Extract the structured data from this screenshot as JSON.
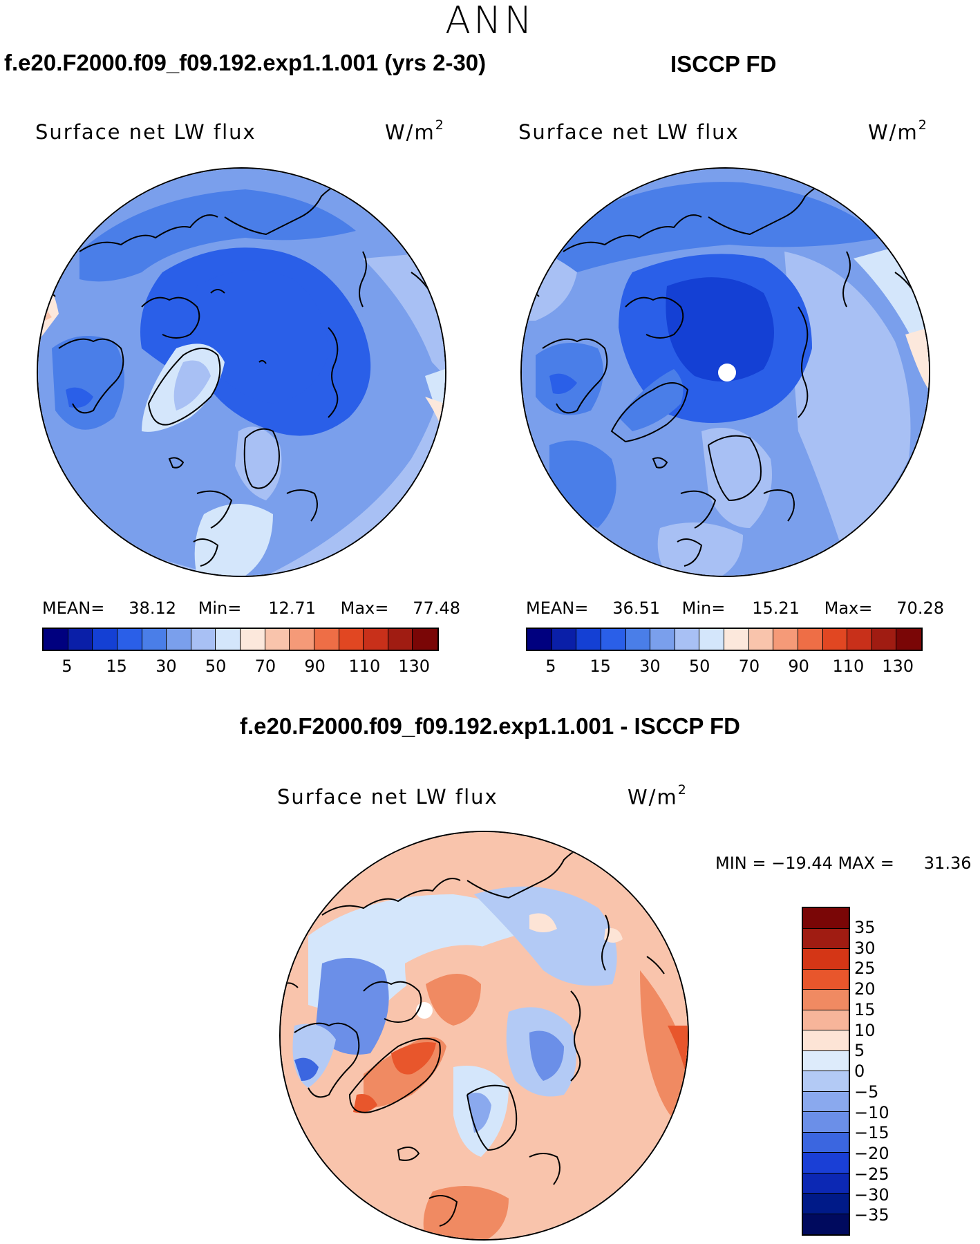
{
  "season": "ANN",
  "panels": {
    "model": {
      "title": "f.e20.F2000.f09_f09.192.exp1.1.001 (yrs 2-30)",
      "variable": "Surface net LW flux",
      "units_base": "W/m",
      "units_exp": "2",
      "mean_label": "MEAN=",
      "mean": "38.12",
      "min_label": "Min=",
      "min": "12.71",
      "max_label": "Max=",
      "max": "77.48"
    },
    "obs": {
      "title": "ISCCP FD",
      "variable": "Surface net LW flux",
      "units_base": "W/m",
      "units_exp": "2",
      "mean_label": "MEAN=",
      "mean": "36.51",
      "min_label": "Min=",
      "min": "15.21",
      "max_label": "Max=",
      "max": "70.28"
    },
    "diff": {
      "title": "f.e20.F2000.f09_f09.192.exp1.1.001 - ISCCP FD",
      "variable": "Surface net LW flux",
      "units_base": "W/m",
      "units_exp": "2",
      "minmax_text": "MIN = −19.44 MAX =",
      "max_value": "31.36"
    }
  },
  "colorbar_main": {
    "colors": [
      "#00007f",
      "#0a1fa8",
      "#1440d4",
      "#2a5fe8",
      "#4a7ee8",
      "#7a9fec",
      "#a8c0f4",
      "#d4e6fb",
      "#fce8dc",
      "#f9c4ac",
      "#f59a78",
      "#ee6e46",
      "#e14722",
      "#c8301a",
      "#a01c12",
      "#7a0606"
    ],
    "ticks": [
      "5",
      "15",
      "30",
      "50",
      "70",
      "90",
      "110",
      "130"
    ]
  },
  "colorbar_diff": {
    "colors": [
      "#7a0606",
      "#a01c12",
      "#d43616",
      "#e8562c",
      "#f08a62",
      "#f7b59a",
      "#fde4d6",
      "#ddebfb",
      "#b3caf5",
      "#8aa9ee",
      "#6b8fe8",
      "#3b66e0",
      "#1a3fd6",
      "#0c28b4",
      "#001a88",
      "#000a5e"
    ],
    "ticks": [
      "35",
      "30",
      "25",
      "20",
      "15",
      "10",
      "5",
      "0",
      "−5",
      "−10",
      "−15",
      "−20",
      "−25",
      "−30",
      "−35"
    ]
  },
  "chart_data": [
    {
      "type": "heatmap",
      "title": "f.e20.F2000.f09_f09.192.exp1.1.001 (yrs 2-30)",
      "variable": "Surface net LW flux",
      "units": "W/m2",
      "projection": "north polar stereographic",
      "mean": 38.12,
      "min": 12.71,
      "max": 77.48,
      "levels": [
        5,
        10,
        15,
        20,
        30,
        40,
        50,
        60,
        70,
        80,
        90,
        100,
        110,
        120,
        130
      ]
    },
    {
      "type": "heatmap",
      "title": "ISCCP FD",
      "variable": "Surface net LW flux",
      "units": "W/m2",
      "projection": "north polar stereographic",
      "mean": 36.51,
      "min": 15.21,
      "max": 70.28,
      "levels": [
        5,
        10,
        15,
        20,
        30,
        40,
        50,
        60,
        70,
        80,
        90,
        100,
        110,
        120,
        130
      ]
    },
    {
      "type": "heatmap",
      "title": "f.e20.F2000.f09_f09.192.exp1.1.001 - ISCCP FD",
      "variable": "Surface net LW flux",
      "units": "W/m2",
      "projection": "north polar stereographic",
      "min": -19.44,
      "max": 31.36,
      "levels": [
        35,
        30,
        25,
        20,
        15,
        10,
        5,
        0,
        -5,
        -10,
        -15,
        -20,
        -25,
        -30,
        -35
      ]
    }
  ]
}
